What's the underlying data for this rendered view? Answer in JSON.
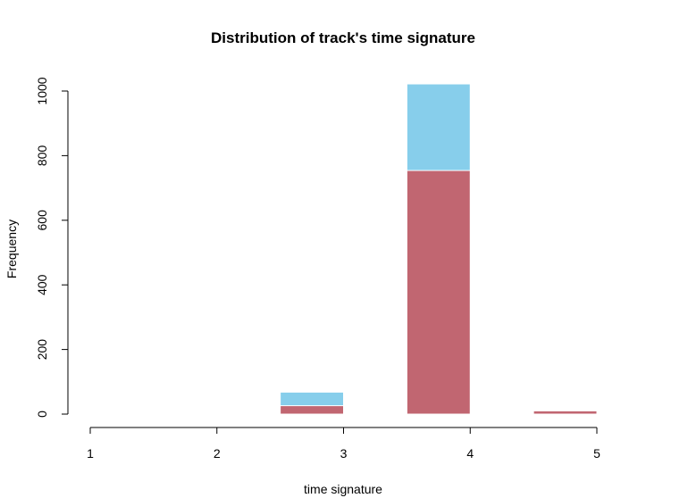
{
  "chart_data": {
    "type": "bar",
    "title": "Distribution of track's time signature",
    "xlabel": "time signature",
    "ylabel": "Frequency",
    "xlim": [
      1,
      5
    ],
    "ylim": [
      0,
      1000
    ],
    "xticks": [
      1,
      2,
      3,
      4,
      5
    ],
    "yticks": [
      0,
      200,
      400,
      600,
      800,
      1000
    ],
    "grid": false,
    "series": [
      {
        "color": "#87CEEB",
        "bars": [
          {
            "left": 2.5,
            "right": 3.0,
            "value": 68
          },
          {
            "left": 3.5,
            "right": 4.0,
            "value": 1022
          }
        ]
      },
      {
        "color": "#C16671",
        "bars": [
          {
            "left": 2.5,
            "right": 3.0,
            "value": 26
          },
          {
            "left": 3.5,
            "right": 4.0,
            "value": 754
          },
          {
            "left": 4.5,
            "right": 5.0,
            "value": 10
          }
        ]
      }
    ]
  }
}
